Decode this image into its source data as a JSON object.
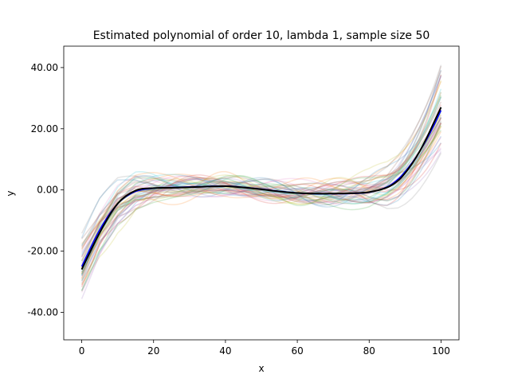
{
  "chart_data": {
    "type": "line",
    "title": "Estimated polynomial of order 10, lambda 1, sample size 50",
    "xlabel": "x",
    "ylabel": "y",
    "xlim": [
      -5,
      105
    ],
    "ylim": [
      -49,
      47
    ],
    "xticks": [
      0,
      20,
      40,
      60,
      80,
      100
    ],
    "xtick_labels": [
      "0",
      "20",
      "40",
      "60",
      "80",
      "100"
    ],
    "yticks": [
      40,
      20,
      0,
      -20,
      -40
    ],
    "ytick_labels": [
      "40.00",
      "20.00",
      "0.00",
      "-20.00",
      "-40.00"
    ],
    "grid": false,
    "legend": "none",
    "series": [
      {
        "role": "true-function",
        "color": "#0000ff",
        "x": [
          0,
          5,
          10,
          15,
          20,
          25,
          30,
          35,
          40,
          45,
          50,
          55,
          60,
          65,
          70,
          75,
          80,
          85,
          88,
          90,
          92,
          94,
          96,
          98,
          100
        ],
        "y": [
          -25,
          -13,
          -4.5,
          -0.5,
          0.5,
          0.8,
          1.0,
          1.2,
          1.3,
          0.9,
          0.3,
          -0.4,
          -1.0,
          -1.3,
          -1.3,
          -1.2,
          -0.8,
          1.0,
          3.5,
          6.0,
          9.0,
          12.5,
          16.5,
          21.0,
          26.0
        ]
      },
      {
        "role": "mean-estimate",
        "color": "#000000",
        "x": [
          0,
          5,
          10,
          15,
          20,
          25,
          30,
          35,
          40,
          45,
          50,
          55,
          60,
          65,
          70,
          75,
          80,
          85,
          88,
          90,
          92,
          94,
          96,
          98,
          100
        ],
        "y": [
          -26,
          -14,
          -4.5,
          -0.2,
          0.6,
          0.7,
          0.9,
          1.1,
          1.2,
          0.8,
          0.2,
          -0.5,
          -1.0,
          -1.2,
          -1.2,
          -1.1,
          -0.7,
          0.8,
          3.0,
          5.5,
          8.7,
          12.5,
          17.0,
          22.0,
          27.0
        ]
      }
    ],
    "bootstrap_estimates": {
      "count": 50,
      "opacity": 0.2,
      "colors": [
        "#1f77b4",
        "#ff7f0e",
        "#2ca02c",
        "#d62728",
        "#9467bd",
        "#8c564b",
        "#e377c2",
        "#7f7f7f",
        "#bcbd22",
        "#17becf"
      ]
    }
  }
}
